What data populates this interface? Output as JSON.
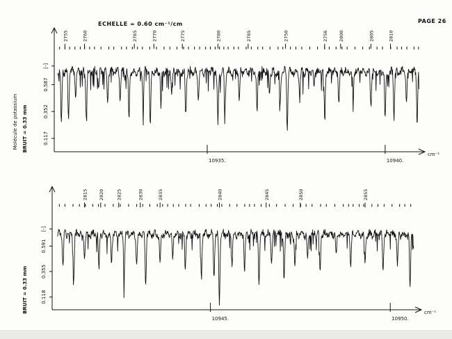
{
  "page": {
    "header": {
      "scale_label": "ECHELLE = 0.60 cm⁻¹/cm",
      "page_label": "PAGE 26"
    }
  },
  "chart_data": [
    {
      "type": "line",
      "title": "",
      "unit": "cm⁻¹",
      "ylabel_1": "Molécule de potassium",
      "ylabel_2": "BRUIT = 0.33 mm",
      "xlim": [
        10930.7,
        10941.0
      ],
      "ylim": [
        0.0,
        0.95
      ],
      "x_ticks": [
        {
          "value": 10935,
          "label": "10935."
        },
        {
          "value": 10940,
          "label": "10940."
        }
      ],
      "y_ticks": [
        {
          "value": 0.117,
          "label": "0.117"
        },
        {
          "value": 0.352,
          "label": "0.352"
        },
        {
          "value": 0.587,
          "label": "0.587"
        },
        {
          "value": 0.75,
          "label": "[-]"
        }
      ],
      "line_labels": [
        {
          "x": 10931.0,
          "label": "2755"
        },
        {
          "x": 10931.55,
          "label": "2760"
        },
        {
          "x": 10932.95,
          "label": "2765"
        },
        {
          "x": 10933.5,
          "label": "2770"
        },
        {
          "x": 10934.3,
          "label": "2775"
        },
        {
          "x": 10935.3,
          "label": "2780"
        },
        {
          "x": 10936.15,
          "label": "2785"
        },
        {
          "x": 10937.2,
          "label": "2750"
        },
        {
          "x": 10938.3,
          "label": "2756"
        },
        {
          "x": 10938.75,
          "label": "2800"
        },
        {
          "x": 10939.6,
          "label": "2805"
        },
        {
          "x": 10940.15,
          "label": "2810"
        }
      ],
      "series": [
        {
          "x_start": 10930.8,
          "x_end": 10940.95,
          "baseline": 0.7,
          "absorption_lines": [
            {
              "x": 10930.9,
              "depth": 0.48
            },
            {
              "x": 10931.1,
              "depth": 0.42
            },
            {
              "x": 10931.3,
              "depth": 0.2
            },
            {
              "x": 10931.6,
              "depth": 0.38
            },
            {
              "x": 10931.95,
              "depth": 0.15
            },
            {
              "x": 10932.2,
              "depth": 0.28
            },
            {
              "x": 10932.55,
              "depth": 0.22
            },
            {
              "x": 10932.8,
              "depth": 0.44
            },
            {
              "x": 10933.2,
              "depth": 0.3
            },
            {
              "x": 10933.4,
              "depth": 0.5
            },
            {
              "x": 10933.7,
              "depth": 0.26
            },
            {
              "x": 10934.0,
              "depth": 0.18
            },
            {
              "x": 10934.4,
              "depth": 0.34
            },
            {
              "x": 10934.75,
              "depth": 0.25
            },
            {
              "x": 10935.3,
              "depth": 0.47
            },
            {
              "x": 10935.5,
              "depth": 0.32
            },
            {
              "x": 10935.9,
              "depth": 0.24
            },
            {
              "x": 10936.4,
              "depth": 0.36
            },
            {
              "x": 10936.75,
              "depth": 0.2
            },
            {
              "x": 10937.05,
              "depth": 0.3
            },
            {
              "x": 10937.25,
              "depth": 0.5
            },
            {
              "x": 10937.6,
              "depth": 0.24
            },
            {
              "x": 10938.0,
              "depth": 0.16
            },
            {
              "x": 10938.3,
              "depth": 0.4
            },
            {
              "x": 10938.7,
              "depth": 0.28
            },
            {
              "x": 10939.1,
              "depth": 0.22
            },
            {
              "x": 10939.6,
              "depth": 0.3
            },
            {
              "x": 10940.0,
              "depth": 0.42
            },
            {
              "x": 10940.25,
              "depth": 0.38
            },
            {
              "x": 10940.6,
              "depth": 0.26
            },
            {
              "x": 10940.9,
              "depth": 0.45
            }
          ]
        }
      ]
    },
    {
      "type": "line",
      "title": "",
      "unit": "cm⁻¹",
      "ylabel_2": "BRUIT = 0.33 mm",
      "xlim": [
        10940.6,
        10950.75
      ],
      "ylim": [
        0.0,
        0.95
      ],
      "x_ticks": [
        {
          "value": 10945,
          "label": "10945."
        },
        {
          "value": 10950,
          "label": "10950."
        }
      ],
      "y_ticks": [
        {
          "value": 0.118,
          "label": "0.118"
        },
        {
          "value": 0.355,
          "label": "0.355"
        },
        {
          "value": 0.591,
          "label": "0.591"
        },
        {
          "value": 0.75,
          "label": "[-]"
        }
      ],
      "line_labels": [
        {
          "x": 10941.5,
          "label": "2815"
        },
        {
          "x": 10941.95,
          "label": "2820"
        },
        {
          "x": 10942.45,
          "label": "2825"
        },
        {
          "x": 10943.05,
          "label": "2830"
        },
        {
          "x": 10943.6,
          "label": "2835"
        },
        {
          "x": 10945.25,
          "label": "2840"
        },
        {
          "x": 10946.55,
          "label": "2845"
        },
        {
          "x": 10947.5,
          "label": "2850"
        },
        {
          "x": 10949.3,
          "label": "2855"
        }
      ],
      "series": [
        {
          "x_start": 10940.75,
          "x_end": 10950.65,
          "baseline": 0.7,
          "absorption_lines": [
            {
              "x": 10940.9,
              "depth": 0.3
            },
            {
              "x": 10941.2,
              "depth": 0.4
            },
            {
              "x": 10941.5,
              "depth": 0.22
            },
            {
              "x": 10941.9,
              "depth": 0.34
            },
            {
              "x": 10942.25,
              "depth": 0.26
            },
            {
              "x": 10942.6,
              "depth": 0.4
            },
            {
              "x": 10942.95,
              "depth": 0.3
            },
            {
              "x": 10943.2,
              "depth": 0.48
            },
            {
              "x": 10943.6,
              "depth": 0.25
            },
            {
              "x": 10943.95,
              "depth": 0.22
            },
            {
              "x": 10944.3,
              "depth": 0.32
            },
            {
              "x": 10944.75,
              "depth": 0.42
            },
            {
              "x": 10945.1,
              "depth": 0.38
            },
            {
              "x": 10945.25,
              "depth": 0.64
            },
            {
              "x": 10945.6,
              "depth": 0.28
            },
            {
              "x": 10945.95,
              "depth": 0.34
            },
            {
              "x": 10946.35,
              "depth": 0.46
            },
            {
              "x": 10946.7,
              "depth": 0.27
            },
            {
              "x": 10947.05,
              "depth": 0.44
            },
            {
              "x": 10947.35,
              "depth": 0.32
            },
            {
              "x": 10947.7,
              "depth": 0.24
            },
            {
              "x": 10948.05,
              "depth": 0.36
            },
            {
              "x": 10948.5,
              "depth": 0.22
            },
            {
              "x": 10948.9,
              "depth": 0.3
            },
            {
              "x": 10949.3,
              "depth": 0.26
            },
            {
              "x": 10949.8,
              "depth": 0.34
            },
            {
              "x": 10950.2,
              "depth": 0.3
            },
            {
              "x": 10950.55,
              "depth": 0.5
            }
          ]
        }
      ]
    }
  ]
}
